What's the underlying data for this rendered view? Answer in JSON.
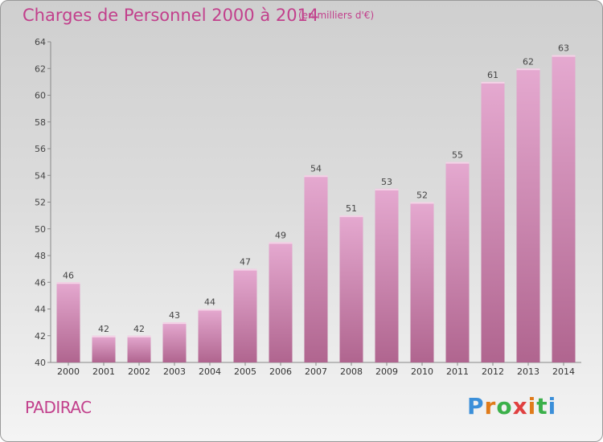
{
  "title": "Charges de Personnel 2000 à 2014",
  "subtitle": "(en milliers d'€)",
  "commune": "PADIRAC",
  "logo": {
    "letters": [
      "P",
      "r",
      "o",
      "x",
      "i",
      "t",
      "i"
    ],
    "colors": [
      "#3b8fd9",
      "#e07b1a",
      "#3bb04a",
      "#e04040",
      "#e07b1a",
      "#3bb04a",
      "#3b8fd9"
    ]
  },
  "colors": {
    "bar_top": "#e5a9d0",
    "bar_bottom": "#b0658f",
    "text": "#c2408c"
  },
  "chart_data": {
    "type": "bar",
    "categories": [
      "2000",
      "2001",
      "2002",
      "2003",
      "2004",
      "2005",
      "2006",
      "2007",
      "2008",
      "2009",
      "2010",
      "2011",
      "2012",
      "2013",
      "2014"
    ],
    "values": [
      46,
      42,
      42,
      43,
      44,
      47,
      49,
      54,
      51,
      53,
      52,
      55,
      61,
      62,
      63
    ],
    "title": "Charges de Personnel 2000 à 2014",
    "ylim": [
      40,
      64
    ],
    "yticks": [
      40,
      42,
      44,
      46,
      48,
      50,
      52,
      54,
      56,
      58,
      60,
      62,
      64
    ],
    "grid": false
  }
}
